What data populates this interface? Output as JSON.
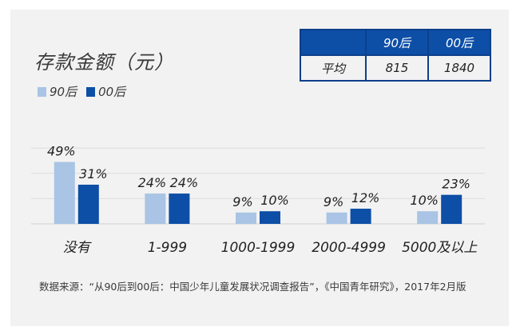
{
  "title": "存款金额（元）",
  "summary_table": {
    "header": [
      "",
      "90后",
      "00后"
    ],
    "row": [
      "平均",
      "815",
      "1840"
    ]
  },
  "source": "数据来源：“从90后到00后：中国少年儿童发展状况调查报告”，《中国青年研究》，2017年2月版",
  "colors": {
    "series_90": "#a9c4e4",
    "series_00": "#0d4ea6",
    "table_header": "#0d4ea6",
    "background": "#f2f2f2"
  },
  "chart_data": {
    "type": "bar",
    "title": "存款金额（元）",
    "categories": [
      "没有",
      "1-999",
      "1000-1999",
      "2000-4999",
      "5000及以上"
    ],
    "series": [
      {
        "name": "90后",
        "values": [
          49,
          24,
          9,
          9,
          10
        ],
        "labels": [
          "49%",
          "24%",
          "9%",
          "9%",
          "10%"
        ]
      },
      {
        "name": "00后",
        "values": [
          31,
          24,
          10,
          12,
          23
        ],
        "labels": [
          "31%",
          "24%",
          "10%",
          "12%",
          "23%"
        ]
      }
    ],
    "ylim": [
      0,
      60
    ],
    "grid": true,
    "legend": "top-left"
  }
}
